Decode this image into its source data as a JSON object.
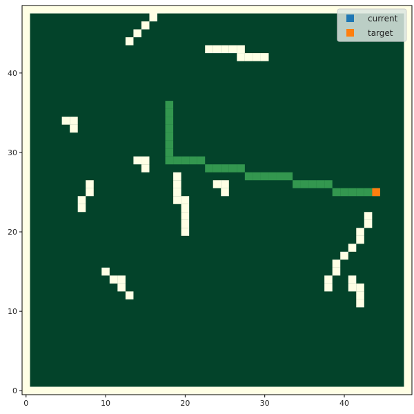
{
  "chart_data": {
    "type": "heatmap",
    "xlim": [
      -0.5,
      48.5
    ],
    "ylim": [
      -0.5,
      48.5
    ],
    "x_ticks": [
      0,
      10,
      20,
      30,
      40
    ],
    "y_ticks": [
      0,
      10,
      20,
      30,
      40
    ],
    "grid": false,
    "legend_position": "top-right",
    "colors": {
      "background": "#FFFFE5",
      "free": "#03432A",
      "obstacle": "#FFFFE5",
      "path": "#33974F",
      "current": "#1F77B4",
      "target": "#FF7F0E"
    },
    "legend": [
      {
        "label": "current",
        "color": "#1F77B4"
      },
      {
        "label": "target",
        "color": "#FF7F0E"
      }
    ],
    "obstacles": [
      [
        17,
        48
      ],
      [
        16,
        47
      ],
      [
        15,
        46
      ],
      [
        14,
        45
      ],
      [
        13,
        44
      ],
      [
        23,
        43
      ],
      [
        24,
        43
      ],
      [
        25,
        43
      ],
      [
        26,
        43
      ],
      [
        27,
        43
      ],
      [
        27,
        42
      ],
      [
        28,
        42
      ],
      [
        29,
        42
      ],
      [
        30,
        42
      ],
      [
        5,
        34
      ],
      [
        6,
        34
      ],
      [
        6,
        33
      ],
      [
        14,
        29
      ],
      [
        15,
        29
      ],
      [
        15,
        28
      ],
      [
        8,
        26
      ],
      [
        8,
        25
      ],
      [
        7,
        24
      ],
      [
        7,
        23
      ],
      [
        19,
        27
      ],
      [
        19,
        26
      ],
      [
        19,
        25
      ],
      [
        19,
        24
      ],
      [
        20,
        24
      ],
      [
        20,
        23
      ],
      [
        20,
        22
      ],
      [
        20,
        21
      ],
      [
        20,
        20
      ],
      [
        24,
        26
      ],
      [
        25,
        26
      ],
      [
        25,
        25
      ],
      [
        43,
        22
      ],
      [
        43,
        21
      ],
      [
        42,
        20
      ],
      [
        42,
        19
      ],
      [
        41,
        18
      ],
      [
        40,
        17
      ],
      [
        39,
        16
      ],
      [
        39,
        15
      ],
      [
        38,
        14
      ],
      [
        38,
        13
      ],
      [
        41,
        14
      ],
      [
        41,
        13
      ],
      [
        42,
        13
      ],
      [
        42,
        12
      ],
      [
        42,
        11
      ],
      [
        10,
        15
      ],
      [
        11,
        14
      ],
      [
        12,
        14
      ],
      [
        12,
        13
      ],
      [
        13,
        12
      ]
    ],
    "path": [
      [
        18,
        36
      ],
      [
        18,
        35
      ],
      [
        18,
        34
      ],
      [
        18,
        33
      ],
      [
        18,
        32
      ],
      [
        18,
        31
      ],
      [
        18,
        30
      ],
      [
        18,
        29
      ],
      [
        19,
        29
      ],
      [
        20,
        29
      ],
      [
        21,
        29
      ],
      [
        22,
        29
      ],
      [
        23,
        28
      ],
      [
        24,
        28
      ],
      [
        25,
        28
      ],
      [
        26,
        28
      ],
      [
        27,
        28
      ],
      [
        28,
        27
      ],
      [
        29,
        27
      ],
      [
        30,
        27
      ],
      [
        31,
        27
      ],
      [
        32,
        27
      ],
      [
        33,
        27
      ],
      [
        34,
        26
      ],
      [
        35,
        26
      ],
      [
        36,
        26
      ],
      [
        37,
        26
      ],
      [
        38,
        26
      ],
      [
        39,
        25
      ],
      [
        40,
        25
      ],
      [
        41,
        25
      ],
      [
        42,
        25
      ],
      [
        43,
        25
      ]
    ],
    "current": [
      44,
      25
    ],
    "target": [
      44,
      25
    ]
  }
}
